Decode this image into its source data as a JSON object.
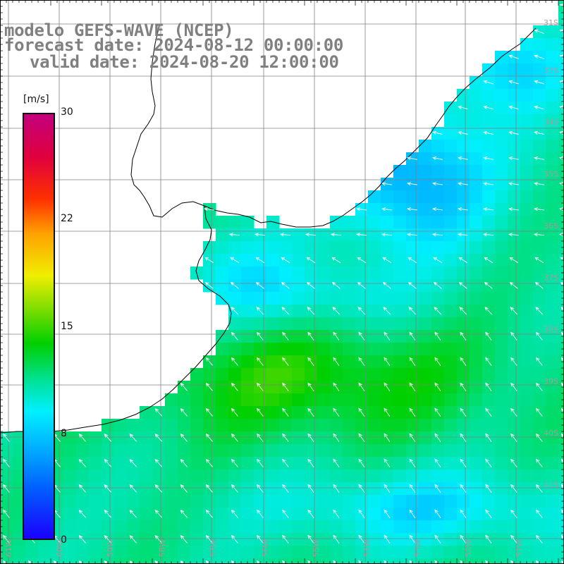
{
  "header": {
    "model_line": "modelo GEFS-WAVE (NCEP)",
    "forecast_line": "forecast date: 2024-08-12 00:00:00",
    "valid_line": "valid date: 2024-08-20 12:00:00"
  },
  "colorbar": {
    "units": "[m/s]",
    "ticks": [
      "30",
      "22",
      "15",
      "8",
      "0"
    ],
    "min": 0,
    "max": 30
  },
  "axes": {
    "lat_labels": [
      "31S",
      "33S",
      "34S",
      "35S",
      "36S",
      "37S",
      "38S",
      "39S",
      "40S",
      "41S"
    ],
    "lon_labels": [
      "61W",
      "60W",
      "59W",
      "58W",
      "57W",
      "56W",
      "55W",
      "54W",
      "53W",
      "52W",
      "51W"
    ]
  },
  "colors": {
    "land": "#ffffff",
    "gridline": "#808080",
    "coastline": "#000000",
    "arrow": "#ffffff"
  }
}
